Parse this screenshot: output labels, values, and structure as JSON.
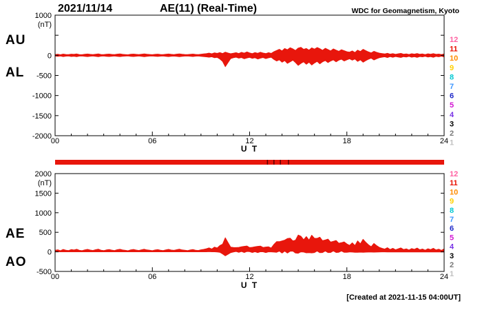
{
  "header": {
    "date": "2021/11/14",
    "title": "AE(11) (Real-Time)",
    "source": "WDC for Geomagnetism, Kyoto"
  },
  "footer": {
    "created": "[Created at 2021-11-15 04:00UT]"
  },
  "station_legend": {
    "numbers": [
      "12",
      "11",
      "10",
      "9",
      "8",
      "7",
      "6",
      "5",
      "4",
      "3",
      "2",
      "1"
    ],
    "colors": [
      "#ff5fa0",
      "#e81000",
      "#ff8c00",
      "#ffd000",
      "#00c8d2",
      "#3c96ff",
      "#1e28c8",
      "#d214d2",
      "#7832e6",
      "#000000",
      "#787878",
      "#c0c0c0"
    ]
  },
  "coverage_bar": {
    "color": "#e8160c",
    "gap_ticks_ut": [
      13.1,
      13.5,
      13.9,
      14.4
    ]
  },
  "chart_data": [
    {
      "type": "area",
      "panel": "AU/AL",
      "title": "AE(11) (Real-Time) upper panel: AU and AL indices",
      "ylabel": "(nT)",
      "xlabel": "U T",
      "ylim": [
        -2000,
        1000
      ],
      "yticks": [
        1000,
        0,
        -500,
        -1000,
        -1500,
        -2000
      ],
      "ytick_step": 500,
      "xtick_values": [
        0,
        6,
        12,
        18,
        24
      ],
      "xtick_labels": [
        "00",
        "06",
        "12",
        "18",
        "24"
      ],
      "xminor_step_hours": 1,
      "x_start_hour": 0,
      "x_step_hours": 0.166667,
      "left_labels": [
        "AU",
        "AL"
      ],
      "trace_color": "#e8160c",
      "legend_position": "none",
      "grid": false,
      "series": [
        {
          "name": "AU",
          "values": [
            20,
            28,
            15,
            32,
            22,
            18,
            30,
            25,
            35,
            20,
            16,
            27,
            33,
            24,
            19,
            28,
            36,
            22,
            17,
            26,
            31,
            23,
            18,
            29,
            34,
            25,
            20,
            15,
            27,
            32,
            24,
            19,
            28,
            35,
            26,
            21,
            16,
            25,
            30,
            22,
            18,
            27,
            33,
            24,
            20,
            29,
            36,
            26,
            21,
            17,
            25,
            31,
            23,
            19,
            28,
            34,
            42,
            55,
            38,
            62,
            48,
            70,
            45,
            80,
            58,
            40,
            52,
            65,
            45,
            75,
            55,
            85,
            60,
            42,
            68,
            50,
            78,
            58,
            44,
            66,
            48,
            90,
            120,
            150,
            110,
            170,
            140,
            190,
            160,
            120,
            180,
            200,
            150,
            170,
            130,
            185,
            155,
            195,
            165,
            125,
            175,
            145,
            110,
            160,
            130,
            100,
            140,
            115,
            90,
            80,
            110,
            70,
            130,
            95,
            150,
            115,
            85,
            60,
            100,
            75,
            55,
            45,
            35,
            50,
            30,
            42,
            25,
            38,
            48,
            28,
            36,
            22,
            40,
            30,
            46,
            26,
            34,
            20,
            38,
            28,
            44,
            24,
            32,
            18,
            36
          ]
        },
        {
          "name": "AL",
          "values": [
            -18,
            -25,
            -14,
            -30,
            -20,
            -16,
            -28,
            -22,
            -32,
            -18,
            -14,
            -24,
            -30,
            -21,
            -17,
            -26,
            -33,
            -20,
            -15,
            -24,
            -28,
            -21,
            -16,
            -26,
            -31,
            -22,
            -18,
            -13,
            -24,
            -29,
            -21,
            -17,
            -25,
            -32,
            -23,
            -19,
            -14,
            -22,
            -27,
            -20,
            -16,
            -24,
            -30,
            -21,
            -18,
            -26,
            -33,
            -23,
            -19,
            -15,
            -22,
            -28,
            -20,
            -17,
            -25,
            -30,
            -38,
            -45,
            -35,
            -60,
            -50,
            -90,
            -150,
            -280,
            -180,
            -80,
            -60,
            -45,
            -70,
            -55,
            -85,
            -65,
            -50,
            -75,
            -60,
            -90,
            -70,
            -55,
            -80,
            -62,
            -48,
            -100,
            -140,
            -110,
            -170,
            -130,
            -200,
            -160,
            -120,
            -180,
            -250,
            -200,
            -160,
            -220,
            -170,
            -240,
            -190,
            -150,
            -210,
            -160,
            -130,
            -180,
            -140,
            -110,
            -160,
            -120,
            -95,
            -140,
            -110,
            -85,
            -120,
            -90,
            -150,
            -110,
            -170,
            -130,
            -95,
            -70,
            -115,
            -85,
            -60,
            -45,
            -35,
            -55,
            -30,
            -48,
            -28,
            -40,
            -52,
            -32,
            -42,
            -25,
            -45,
            -34,
            -50,
            -28,
            -38,
            -22,
            -42,
            -30,
            -48,
            -26,
            -36,
            -20,
            -40
          ]
        }
      ]
    },
    {
      "type": "area",
      "panel": "AE/AO",
      "title": "AE(11) (Real-Time) lower panel: AE and AO indices",
      "ylabel": "(nT)",
      "xlabel": "U T",
      "ylim": [
        -500,
        2000
      ],
      "yticks": [
        2000,
        1500,
        1000,
        500,
        0,
        -500
      ],
      "ytick_step": 500,
      "xtick_values": [
        0,
        6,
        12,
        18,
        24
      ],
      "xtick_labels": [
        "00",
        "06",
        "12",
        "18",
        "24"
      ],
      "xminor_step_hours": 1,
      "x_start_hour": 0,
      "x_step_hours": 0.166667,
      "left_labels": [
        "AE",
        "AO"
      ],
      "trace_color": "#e8160c",
      "legend_position": "none",
      "grid": false,
      "series": [
        {
          "name": "AE",
          "derived_from": "AU - AL"
        },
        {
          "name": "AO",
          "derived_from": "(AU + AL) / 2"
        }
      ]
    }
  ]
}
